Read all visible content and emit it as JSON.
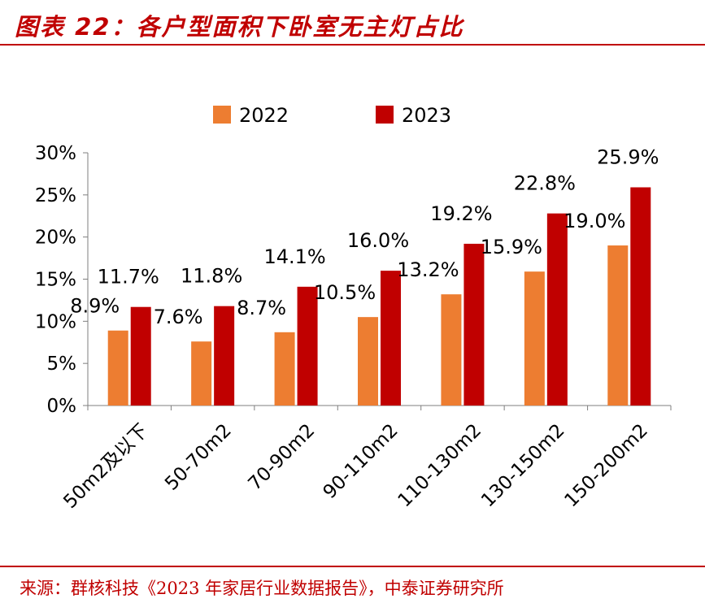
{
  "header": {
    "title": "图表 22：各户型面积下卧室无主灯占比"
  },
  "chart_data": {
    "type": "bar",
    "title": "各户型面积下卧室无主灯占比",
    "categories": [
      "50m2及以下",
      "50-70m2",
      "70-90m2",
      "90-110m2",
      "110-130m2",
      "130-150m2",
      "150-200m2"
    ],
    "series": [
      {
        "name": "2022",
        "color": "#ed7d31",
        "values": [
          8.9,
          7.6,
          8.7,
          10.5,
          13.2,
          15.9,
          19.0
        ],
        "labels": [
          "8.9%",
          "7.6%",
          "8.7%",
          "10.5%",
          "13.2%",
          "15.9%",
          "19.0%"
        ]
      },
      {
        "name": "2023",
        "color": "#c00000",
        "values": [
          11.7,
          11.8,
          14.1,
          16.0,
          19.2,
          22.8,
          25.9
        ],
        "labels": [
          "11.7%",
          "11.8%",
          "14.1%",
          "16.0%",
          "19.2%",
          "22.8%",
          "25.9%"
        ]
      }
    ],
    "ylim": [
      0,
      30
    ],
    "yticks": [
      0,
      5,
      10,
      15,
      20,
      25,
      30
    ],
    "ytick_labels": [
      "0%",
      "5%",
      "10%",
      "15%",
      "20%",
      "25%",
      "30%"
    ],
    "xlabel": "",
    "ylabel": "",
    "grid": false,
    "legend_position": "top-center"
  },
  "footer": {
    "source": "来源：群核科技《2023 年家居行业数据报告》，中泰证券研究所"
  }
}
